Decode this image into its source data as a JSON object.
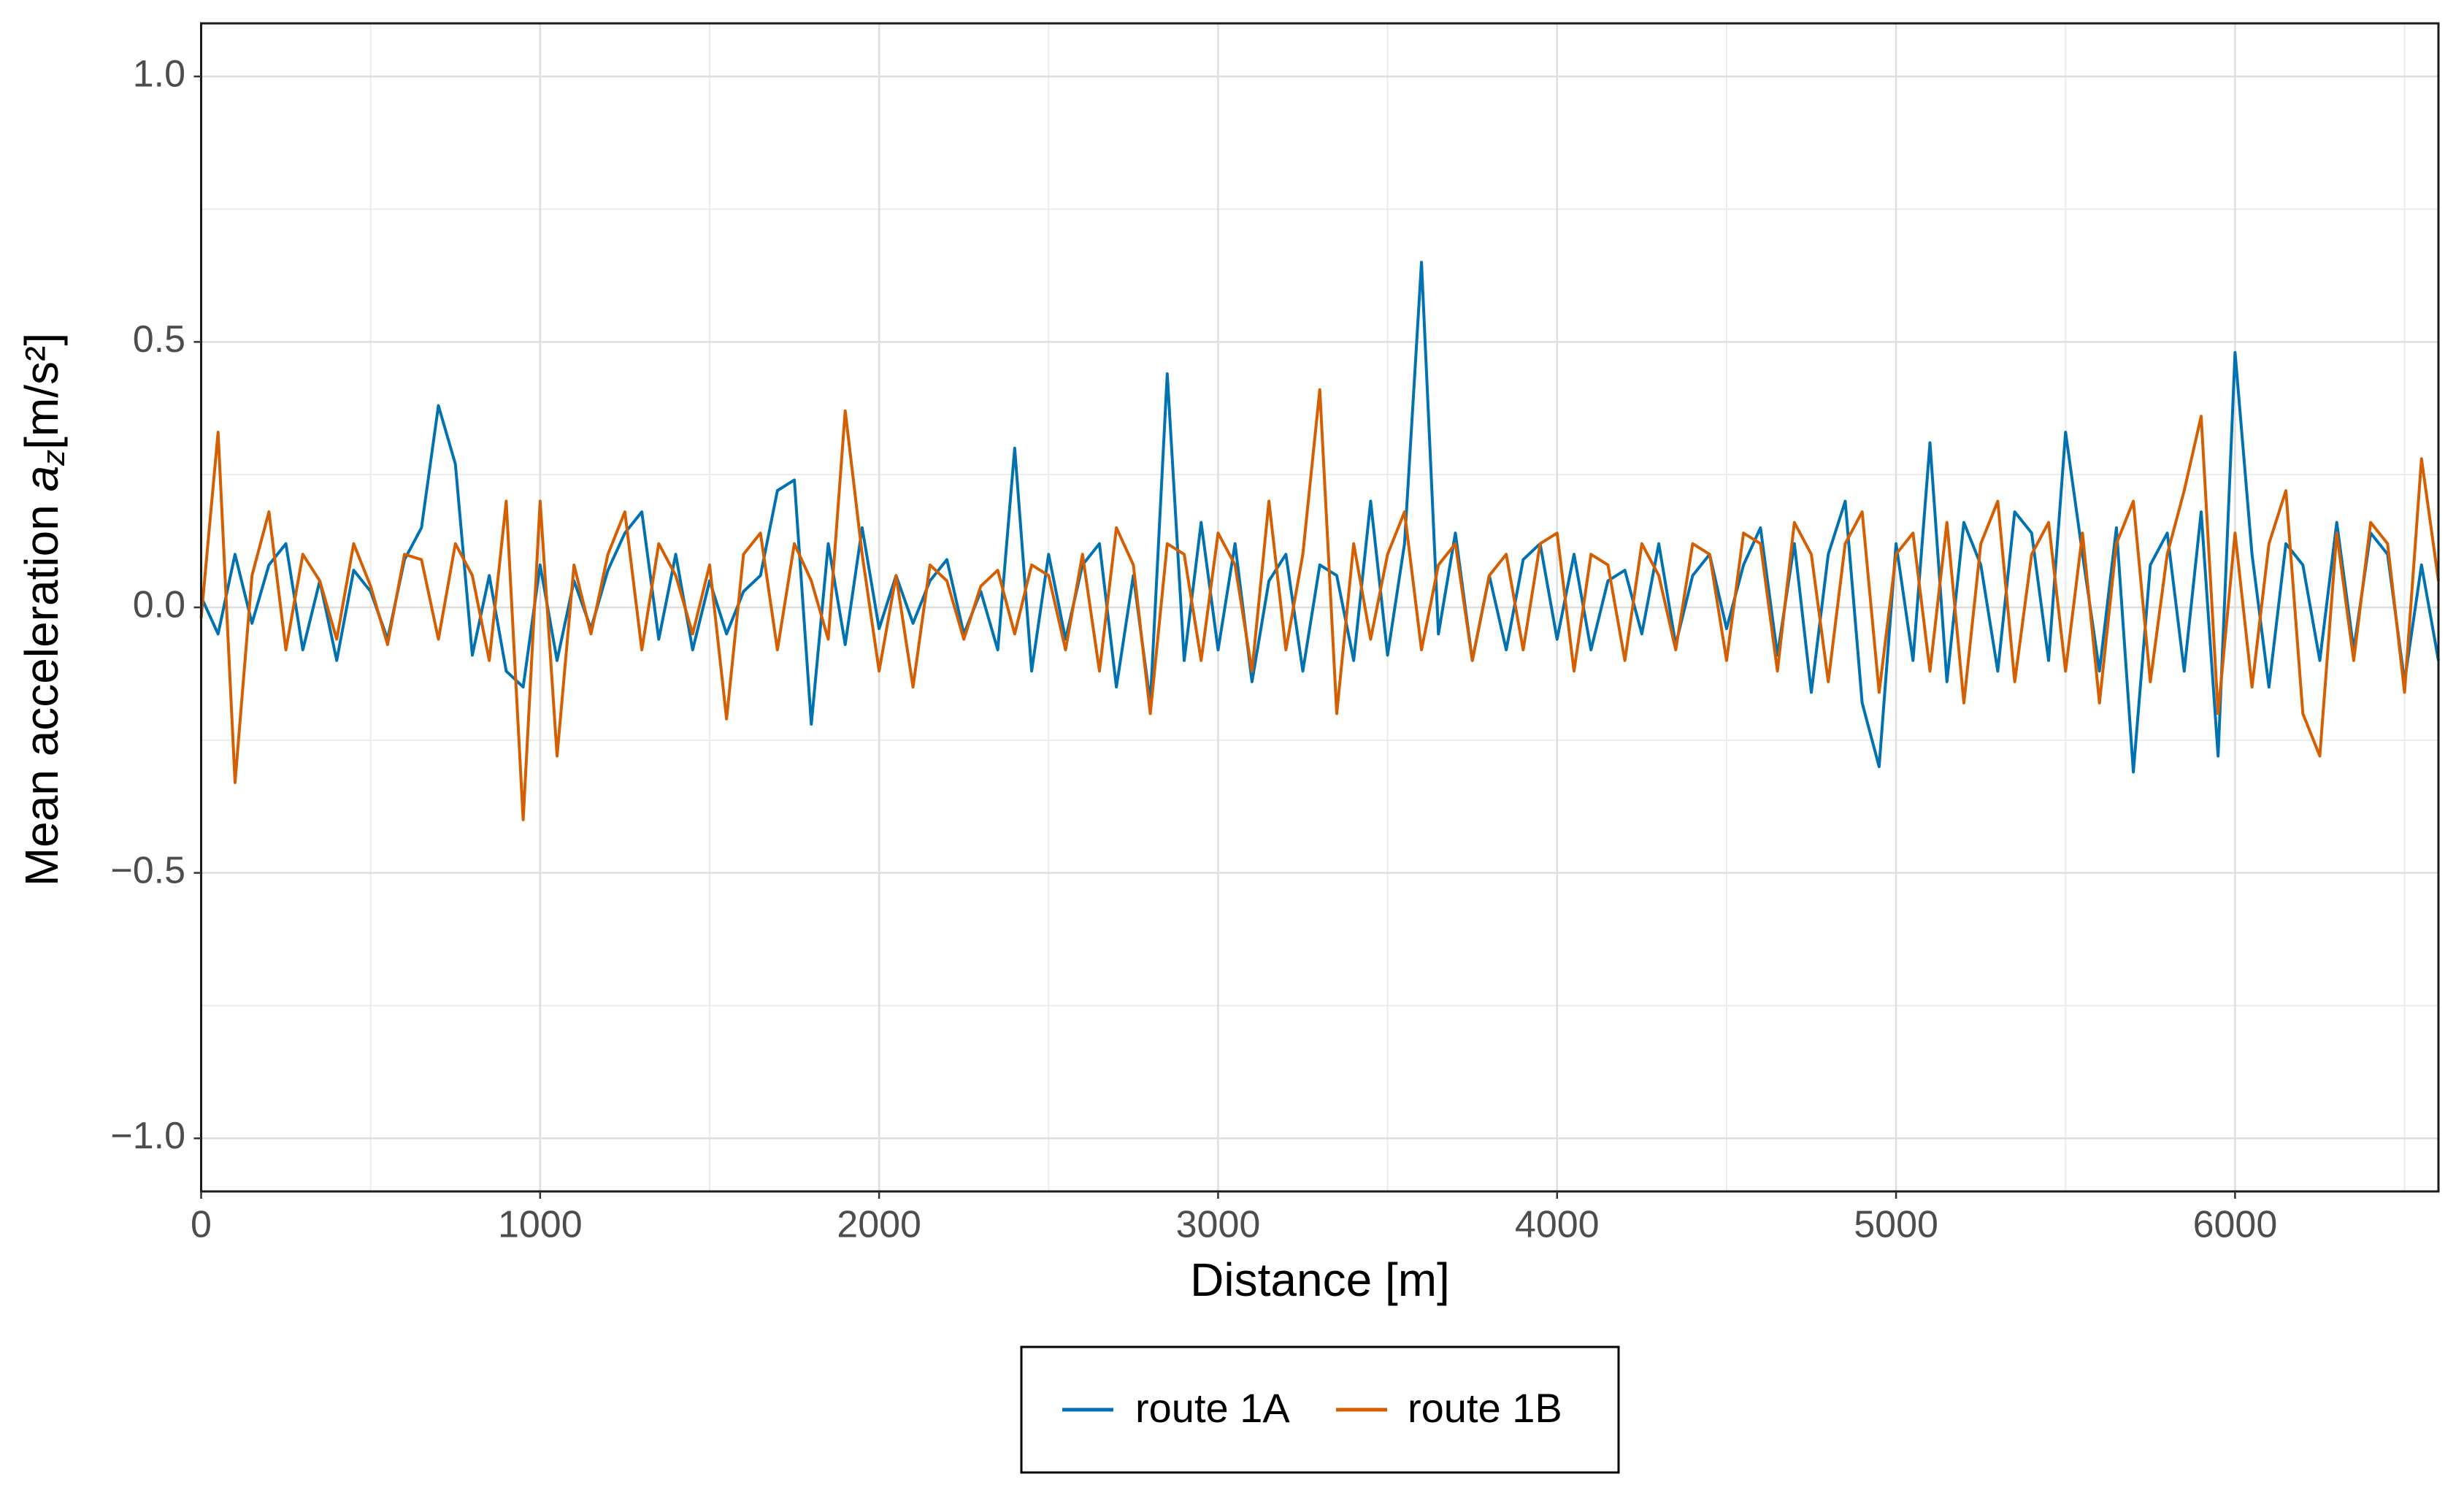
{
  "chart_data": {
    "type": "line",
    "x_label": "Distance [m]",
    "y_label_text": "Mean acceleration",
    "y_label_symbol": "a",
    "y_label_subscript": "z",
    "y_label_unit": "[m/s²]",
    "x": [
      0,
      50,
      100,
      150,
      200,
      250,
      300,
      350,
      400,
      450,
      500,
      550,
      600,
      650,
      700,
      750,
      800,
      850,
      900,
      950,
      1000,
      1050,
      1100,
      1150,
      1200,
      1250,
      1300,
      1350,
      1400,
      1450,
      1500,
      1550,
      1600,
      1650,
      1700,
      1750,
      1800,
      1850,
      1900,
      1950,
      2000,
      2050,
      2100,
      2150,
      2200,
      2250,
      2300,
      2350,
      2400,
      2450,
      2500,
      2550,
      2600,
      2650,
      2700,
      2750,
      2800,
      2850,
      2900,
      2950,
      3000,
      3050,
      3100,
      3150,
      3200,
      3250,
      3300,
      3350,
      3400,
      3450,
      3500,
      3550,
      3600,
      3650,
      3700,
      3750,
      3800,
      3850,
      3900,
      3950,
      4000,
      4050,
      4100,
      4150,
      4200,
      4250,
      4300,
      4350,
      4400,
      4450,
      4500,
      4550,
      4600,
      4650,
      4700,
      4750,
      4800,
      4850,
      4900,
      4950,
      5000,
      5050,
      5100,
      5150,
      5200,
      5250,
      5300,
      5350,
      5400,
      5450,
      5500,
      5550,
      5600,
      5650,
      5700,
      5750,
      5800,
      5850,
      5900,
      5950,
      6000,
      6050,
      6100,
      6150,
      6200,
      6250,
      6300,
      6350,
      6400,
      6450,
      6500,
      6550,
      6600
    ],
    "series": [
      {
        "name": "route 1A",
        "color": "#0072B2",
        "values": [
          0.02,
          -0.05,
          0.1,
          -0.03,
          0.08,
          0.12,
          -0.08,
          0.05,
          -0.1,
          0.07,
          0.03,
          -0.06,
          0.09,
          0.15,
          0.38,
          0.27,
          -0.09,
          0.06,
          -0.12,
          -0.15,
          0.08,
          -0.1,
          0.05,
          -0.04,
          0.07,
          0.14,
          0.18,
          -0.06,
          0.1,
          -0.08,
          0.05,
          -0.05,
          0.03,
          0.06,
          0.22,
          0.24,
          -0.22,
          0.12,
          -0.07,
          0.15,
          -0.04,
          0.06,
          -0.03,
          0.05,
          0.09,
          -0.05,
          0.03,
          -0.08,
          0.3,
          -0.12,
          0.1,
          -0.06,
          0.08,
          0.12,
          -0.15,
          0.06,
          -0.18,
          0.44,
          -0.1,
          0.16,
          -0.08,
          0.12,
          -0.14,
          0.05,
          0.1,
          -0.12,
          0.08,
          0.06,
          -0.1,
          0.2,
          -0.09,
          0.12,
          0.65,
          -0.05,
          0.14,
          -0.1,
          0.06,
          -0.08,
          0.09,
          0.12,
          -0.06,
          0.1,
          -0.08,
          0.05,
          0.07,
          -0.05,
          0.12,
          -0.07,
          0.06,
          0.1,
          -0.04,
          0.08,
          0.15,
          -0.09,
          0.12,
          -0.16,
          0.1,
          0.2,
          -0.18,
          -0.3,
          0.12,
          -0.1,
          0.31,
          -0.14,
          0.16,
          0.08,
          -0.12,
          0.18,
          0.14,
          -0.1,
          0.33,
          0.1,
          -0.12,
          0.15,
          -0.31,
          0.08,
          0.14,
          -0.12,
          0.18,
          -0.28,
          0.48,
          0.1,
          -0.15,
          0.12,
          0.08,
          -0.1,
          0.16,
          -0.08,
          0.14,
          0.1,
          -0.14,
          0.08,
          -0.1
        ]
      },
      {
        "name": "route 1B",
        "color": "#D55E00",
        "values": [
          -0.02,
          0.33,
          -0.33,
          0.06,
          0.18,
          -0.08,
          0.1,
          0.05,
          -0.06,
          0.12,
          0.04,
          -0.07,
          0.1,
          0.09,
          -0.06,
          0.12,
          0.06,
          -0.1,
          0.2,
          -0.4,
          0.2,
          -0.28,
          0.08,
          -0.05,
          0.1,
          0.18,
          -0.08,
          0.12,
          0.06,
          -0.05,
          0.08,
          -0.21,
          0.1,
          0.14,
          -0.08,
          0.12,
          0.05,
          -0.06,
          0.37,
          0.1,
          -0.12,
          0.06,
          -0.15,
          0.08,
          0.05,
          -0.06,
          0.04,
          0.07,
          -0.05,
          0.08,
          0.06,
          -0.08,
          0.1,
          -0.12,
          0.15,
          0.08,
          -0.2,
          0.12,
          0.1,
          -0.1,
          0.14,
          0.08,
          -0.12,
          0.2,
          -0.08,
          0.1,
          0.41,
          -0.2,
          0.12,
          -0.06,
          0.1,
          0.18,
          -0.08,
          0.08,
          0.12,
          -0.1,
          0.06,
          0.1,
          -0.08,
          0.12,
          0.14,
          -0.12,
          0.1,
          0.08,
          -0.1,
          0.12,
          0.06,
          -0.08,
          0.12,
          0.1,
          -0.1,
          0.14,
          0.12,
          -0.12,
          0.16,
          0.1,
          -0.14,
          0.12,
          0.18,
          -0.16,
          0.1,
          0.14,
          -0.12,
          0.16,
          -0.18,
          0.12,
          0.2,
          -0.14,
          0.1,
          0.16,
          -0.12,
          0.14,
          -0.18,
          0.12,
          0.2,
          -0.14,
          0.1,
          0.22,
          0.36,
          -0.2,
          0.14,
          -0.15,
          0.12,
          0.22,
          -0.2,
          -0.28,
          0.14,
          -0.1,
          0.16,
          0.12,
          -0.16,
          0.28,
          0.05
        ]
      }
    ],
    "xlim": [
      0,
      6600
    ],
    "ylim": [
      -1.1,
      1.1
    ],
    "xticks": [
      0,
      1000,
      2000,
      3000,
      4000,
      5000,
      6000
    ],
    "yticks": [
      {
        "value": -1.0,
        "label": "−1.0"
      },
      {
        "value": -0.5,
        "label": "−0.5"
      },
      {
        "value": 0.0,
        "label": "0.0"
      },
      0.5,
      {
        "value": 1.0,
        "label": "1.0"
      }
    ],
    "grid": true,
    "legend": "bottom"
  }
}
